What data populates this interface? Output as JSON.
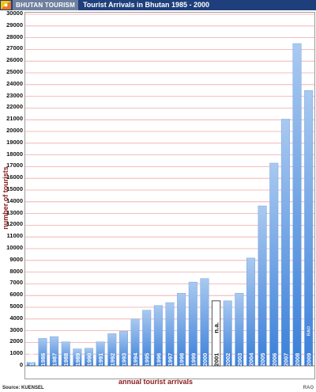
{
  "header": {
    "brand": "BHUTAN TOURISM",
    "title": "Tourist Arrivals in Bhutan 1985 - 2000"
  },
  "footer": {
    "source": "Source: KUENSEL",
    "credit": "RAO"
  },
  "chart_data": {
    "type": "bar",
    "title": "Tourist Arrivals in Bhutan 1985 - 2000",
    "xlabel": "annual tourist arrivals",
    "ylabel": "number of tourists",
    "ylim": [
      0,
      30000
    ],
    "ytick_step": 1000,
    "grid": true,
    "categories": [
      "1985",
      "1986",
      "1987",
      "1988",
      "1989",
      "1990",
      "1991",
      "1992",
      "1993",
      "1994",
      "1995",
      "1996",
      "1997",
      "1998",
      "1999",
      "2000",
      "2001",
      "2002",
      "2003",
      "2004",
      "2005",
      "2006",
      "2007",
      "2008",
      "2009"
    ],
    "values": [
      300,
      2350,
      2500,
      2050,
      1450,
      1500,
      2050,
      2750,
      2950,
      4000,
      4750,
      5150,
      5400,
      6200,
      7150,
      7450,
      5550,
      5550,
      6200,
      9200,
      13650,
      17300,
      21050,
      27500,
      23500
    ],
    "special": {
      "2001": "n.a."
    },
    "watermark_bar": "2009",
    "watermark_text": "RAO",
    "colors": {
      "bar_top": "#a9c9f0",
      "bar_bottom": "#3a7fd9",
      "grid": "#f0a8a8",
      "label": "#8b1a1a"
    }
  }
}
